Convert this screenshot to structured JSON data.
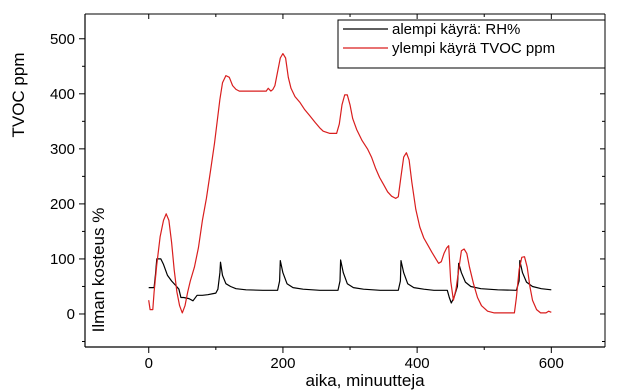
{
  "chart_data": {
    "type": "line",
    "xlabel": "aika, minuutteja",
    "ylabel": "TVOC ppm",
    "ylabel2": "Ilman kosteus %",
    "xlim": [
      -95,
      680
    ],
    "ylim": [
      -60,
      545
    ],
    "xticks": [
      0,
      200,
      400,
      600
    ],
    "yticks": [
      0,
      100,
      200,
      300,
      400,
      500
    ],
    "legend_position": "top-right",
    "series": [
      {
        "name": "alempi käyrä: RH%",
        "color": "#000000",
        "points": [
          [
            0,
            48
          ],
          [
            8,
            48
          ],
          [
            10,
            72
          ],
          [
            12,
            100
          ],
          [
            18,
            100
          ],
          [
            22,
            90
          ],
          [
            28,
            70
          ],
          [
            34,
            60
          ],
          [
            40,
            52
          ],
          [
            45,
            45
          ],
          [
            48,
            30
          ],
          [
            52,
            30
          ],
          [
            60,
            28
          ],
          [
            66,
            24
          ],
          [
            72,
            34
          ],
          [
            80,
            34
          ],
          [
            88,
            35
          ],
          [
            96,
            37
          ],
          [
            100,
            38
          ],
          [
            103,
            45
          ],
          [
            106,
            75
          ],
          [
            107,
            94
          ],
          [
            110,
            70
          ],
          [
            115,
            55
          ],
          [
            122,
            50
          ],
          [
            130,
            46
          ],
          [
            145,
            44
          ],
          [
            170,
            43
          ],
          [
            192,
            43
          ],
          [
            195,
            60
          ],
          [
            196,
            97
          ],
          [
            200,
            75
          ],
          [
            206,
            55
          ],
          [
            215,
            48
          ],
          [
            230,
            45
          ],
          [
            255,
            43
          ],
          [
            282,
            43
          ],
          [
            285,
            60
          ],
          [
            286,
            98
          ],
          [
            290,
            75
          ],
          [
            296,
            55
          ],
          [
            305,
            48
          ],
          [
            320,
            45
          ],
          [
            345,
            43
          ],
          [
            372,
            43
          ],
          [
            375,
            60
          ],
          [
            376,
            97
          ],
          [
            380,
            75
          ],
          [
            386,
            55
          ],
          [
            395,
            48
          ],
          [
            410,
            45
          ],
          [
            425,
            43
          ],
          [
            445,
            43
          ],
          [
            448,
            30
          ],
          [
            451,
            20
          ],
          [
            455,
            30
          ],
          [
            460,
            50
          ],
          [
            462,
            92
          ],
          [
            466,
            75
          ],
          [
            472,
            58
          ],
          [
            480,
            50
          ],
          [
            495,
            46
          ],
          [
            520,
            44
          ],
          [
            548,
            43
          ],
          [
            552,
            60
          ],
          [
            553,
            97
          ],
          [
            557,
            75
          ],
          [
            563,
            58
          ],
          [
            572,
            50
          ],
          [
            585,
            46
          ],
          [
            600,
            44
          ]
        ]
      },
      {
        "name": "ylempi käyrä TVOC ppm",
        "color": "#d91e1e",
        "points": [
          [
            0,
            25
          ],
          [
            2,
            8
          ],
          [
            6,
            8
          ],
          [
            8,
            40
          ],
          [
            12,
            90
          ],
          [
            17,
            140
          ],
          [
            22,
            170
          ],
          [
            26,
            182
          ],
          [
            30,
            170
          ],
          [
            34,
            130
          ],
          [
            38,
            80
          ],
          [
            42,
            40
          ],
          [
            46,
            15
          ],
          [
            50,
            2
          ],
          [
            54,
            15
          ],
          [
            58,
            40
          ],
          [
            62,
            60
          ],
          [
            68,
            85
          ],
          [
            74,
            120
          ],
          [
            80,
            170
          ],
          [
            86,
            210
          ],
          [
            92,
            260
          ],
          [
            98,
            310
          ],
          [
            102,
            350
          ],
          [
            106,
            390
          ],
          [
            110,
            420
          ],
          [
            115,
            433
          ],
          [
            120,
            430
          ],
          [
            125,
            415
          ],
          [
            130,
            408
          ],
          [
            135,
            405
          ],
          [
            150,
            405
          ],
          [
            165,
            405
          ],
          [
            175,
            405
          ],
          [
            178,
            410
          ],
          [
            182,
            405
          ],
          [
            185,
            408
          ],
          [
            188,
            415
          ],
          [
            192,
            440
          ],
          [
            196,
            465
          ],
          [
            200,
            473
          ],
          [
            204,
            465
          ],
          [
            208,
            430
          ],
          [
            212,
            410
          ],
          [
            218,
            395
          ],
          [
            225,
            385
          ],
          [
            232,
            372
          ],
          [
            240,
            360
          ],
          [
            248,
            348
          ],
          [
            255,
            338
          ],
          [
            260,
            332
          ],
          [
            270,
            328
          ],
          [
            280,
            328
          ],
          [
            284,
            345
          ],
          [
            288,
            380
          ],
          [
            292,
            398
          ],
          [
            296,
            398
          ],
          [
            300,
            380
          ],
          [
            304,
            355
          ],
          [
            310,
            335
          ],
          [
            318,
            315
          ],
          [
            326,
            300
          ],
          [
            332,
            285
          ],
          [
            338,
            265
          ],
          [
            344,
            248
          ],
          [
            350,
            235
          ],
          [
            356,
            222
          ],
          [
            362,
            214
          ],
          [
            368,
            210
          ],
          [
            372,
            213
          ],
          [
            376,
            250
          ],
          [
            380,
            285
          ],
          [
            384,
            293
          ],
          [
            388,
            280
          ],
          [
            392,
            240
          ],
          [
            398,
            190
          ],
          [
            404,
            158
          ],
          [
            410,
            138
          ],
          [
            416,
            125
          ],
          [
            422,
            112
          ],
          [
            428,
            100
          ],
          [
            432,
            92
          ],
          [
            436,
            95
          ],
          [
            440,
            110
          ],
          [
            444,
            120
          ],
          [
            447,
            124
          ],
          [
            450,
            60
          ],
          [
            454,
            25
          ],
          [
            458,
            45
          ],
          [
            462,
            80
          ],
          [
            466,
            115
          ],
          [
            470,
            118
          ],
          [
            474,
            110
          ],
          [
            478,
            85
          ],
          [
            484,
            55
          ],
          [
            490,
            30
          ],
          [
            496,
            15
          ],
          [
            505,
            5
          ],
          [
            515,
            2
          ],
          [
            530,
            2
          ],
          [
            545,
            2
          ],
          [
            548,
            30
          ],
          [
            552,
            80
          ],
          [
            556,
            103
          ],
          [
            560,
            104
          ],
          [
            564,
            85
          ],
          [
            568,
            50
          ],
          [
            572,
            25
          ],
          [
            578,
            8
          ],
          [
            584,
            2
          ],
          [
            592,
            2
          ],
          [
            596,
            5
          ],
          [
            600,
            3
          ]
        ]
      }
    ]
  }
}
